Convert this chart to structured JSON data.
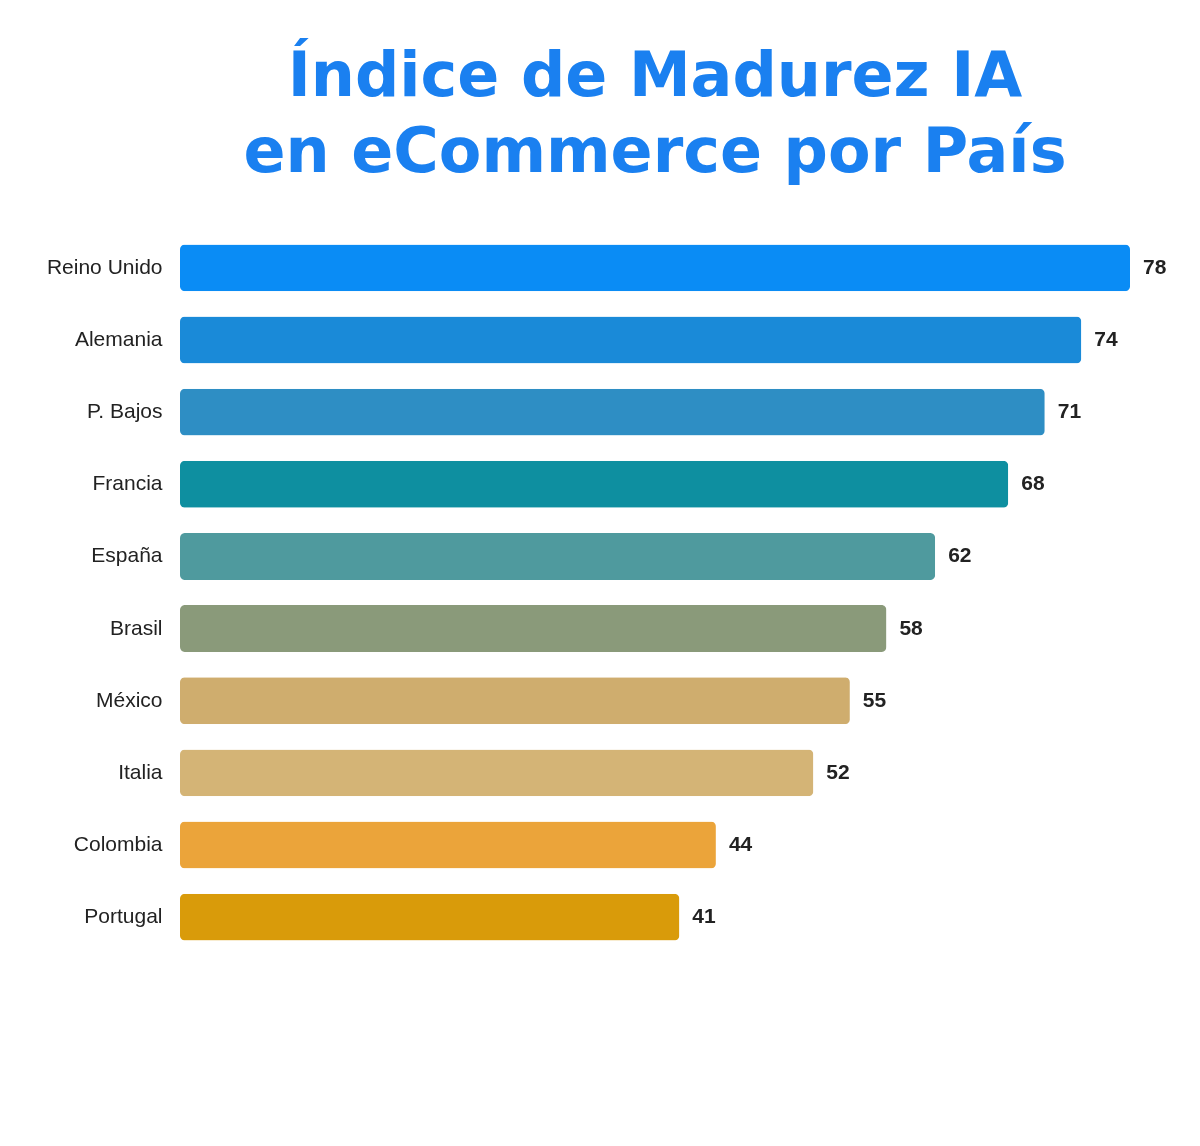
{
  "chart_data": {
    "type": "bar",
    "orientation": "horizontal",
    "title": "Índice de Madurez IA\nen eCommerce por País",
    "categories": [
      "Reino Unido",
      "Alemania",
      "P. Bajos",
      "Francia",
      "España",
      "Brasil",
      "México",
      "Italia",
      "Colombia",
      "Portugal"
    ],
    "values": [
      78,
      74,
      71,
      68,
      62,
      58,
      55,
      52,
      44,
      41
    ],
    "colors": [
      "#0a8cf5",
      "#1a8ad8",
      "#2e8ec4",
      "#0e8fa0",
      "#4f9a9e",
      "#8a9a7a",
      "#cfad6e",
      "#d4b476",
      "#eba43a",
      "#d99b0a"
    ],
    "data_labels": true
  }
}
